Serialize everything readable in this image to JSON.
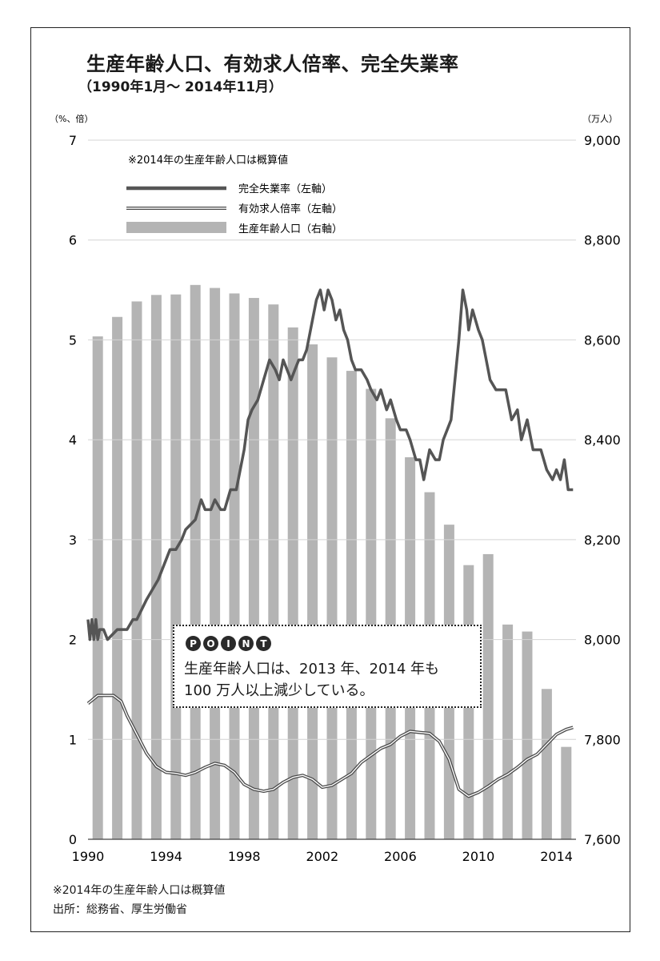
{
  "title": "生産年齢人口、有効求人倍率、完全失業率",
  "subtitle": "（1990年1月～ 2014年11月）",
  "left_axis_unit": "（%、倍）",
  "right_axis_unit": "（万人）",
  "legend": {
    "note": "※2014年の生産年齢人口は概算値",
    "unemployment": "完全失業率（左軸）",
    "job_ratio": "有効求人倍率（左軸）",
    "working_age": "生産年齢人口（右軸）"
  },
  "point": {
    "badge": [
      "P",
      "O",
      "I",
      "N",
      "T"
    ],
    "text": "生産年齢人口は、2013 年、2014 年も\n100 万人以上減少している。"
  },
  "footnote": "※2014年の生産年齢人口は概算値",
  "source": "出所：総務省、厚生労働省",
  "colors": {
    "bars": "#b4b4b4",
    "grid": "#d4d4d4",
    "unemployment": "#555555",
    "job_ratio": "#4a4a4a"
  },
  "chart_data": {
    "type": "bar+line",
    "left_axis": {
      "unit": "（%、倍）",
      "range": [
        0,
        7
      ],
      "ticks": [
        "0",
        "1",
        "2",
        "3",
        "4",
        "5",
        "6",
        "7"
      ]
    },
    "right_axis": {
      "unit": "（万人）",
      "range": [
        7600,
        9000
      ],
      "ticks": [
        "7,600",
        "7,800",
        "8,000",
        "8,200",
        "8,400",
        "8,600",
        "8,800",
        "9,000"
      ]
    },
    "x_axis": {
      "range": [
        1990,
        2015
      ],
      "tick_labels": [
        "1990",
        "1994",
        "1998",
        "2002",
        "2006",
        "2010",
        "2014"
      ]
    },
    "grid": true,
    "legend_position": "top-left",
    "working_age_population": {
      "name": "生産年齢人口（右軸）",
      "years": [
        1990,
        1991,
        1992,
        1993,
        1994,
        1995,
        1996,
        1997,
        1998,
        1999,
        2000,
        2001,
        2002,
        2003,
        2004,
        2005,
        2006,
        2007,
        2008,
        2009,
        2010,
        2011,
        2012,
        2013,
        2014
      ],
      "values": [
        8607,
        8646,
        8677,
        8690,
        8691,
        8710,
        8704,
        8693,
        8684,
        8671,
        8625,
        8591,
        8565,
        8538,
        8502,
        8443,
        8365,
        8295,
        8230,
        8149,
        8171,
        8030,
        8016,
        7901,
        7785
      ]
    },
    "unemployment_rate": {
      "name": "完全失業率（左軸）",
      "x": [
        1990.0,
        1990.1,
        1990.2,
        1990.3,
        1990.4,
        1990.5,
        1990.6,
        1990.8,
        1991.0,
        1991.5,
        1992.0,
        1992.3,
        1992.5,
        1993.0,
        1993.3,
        1993.6,
        1994.0,
        1994.2,
        1994.5,
        1994.8,
        1995.0,
        1995.5,
        1995.8,
        1996.0,
        1996.3,
        1996.5,
        1996.8,
        1997.0,
        1997.3,
        1997.6,
        1998.0,
        1998.2,
        1998.4,
        1998.7,
        1999.0,
        1999.3,
        1999.6,
        1999.8,
        2000.0,
        2000.2,
        2000.4,
        2000.6,
        2000.8,
        2001.0,
        2001.2,
        2001.5,
        2001.7,
        2001.9,
        2002.1,
        2002.3,
        2002.5,
        2002.7,
        2002.9,
        2003.1,
        2003.3,
        2003.5,
        2003.7,
        2004.0,
        2004.3,
        2004.5,
        2004.8,
        2005.0,
        2005.3,
        2005.5,
        2005.8,
        2006.0,
        2006.3,
        2006.5,
        2006.8,
        2007.0,
        2007.2,
        2007.5,
        2007.8,
        2008.0,
        2008.2,
        2008.4,
        2008.6,
        2008.8,
        2009.0,
        2009.2,
        2009.4,
        2009.5,
        2009.7,
        2010.0,
        2010.2,
        2010.4,
        2010.6,
        2010.9,
        2011.1,
        2011.4,
        2011.7,
        2012.0,
        2012.2,
        2012.5,
        2012.8,
        2013.0,
        2013.2,
        2013.5,
        2013.8,
        2014.0,
        2014.2,
        2014.4,
        2014.6,
        2014.85
      ],
      "values": [
        2.2,
        2.0,
        2.2,
        2.0,
        2.2,
        2.0,
        2.1,
        2.1,
        2.0,
        2.1,
        2.1,
        2.2,
        2.2,
        2.4,
        2.5,
        2.6,
        2.8,
        2.9,
        2.9,
        3.0,
        3.1,
        3.2,
        3.4,
        3.3,
        3.3,
        3.4,
        3.3,
        3.3,
        3.5,
        3.5,
        3.9,
        4.2,
        4.3,
        4.4,
        4.6,
        4.8,
        4.7,
        4.6,
        4.8,
        4.7,
        4.6,
        4.7,
        4.8,
        4.8,
        4.9,
        5.2,
        5.4,
        5.5,
        5.3,
        5.5,
        5.4,
        5.2,
        5.3,
        5.1,
        5.0,
        4.8,
        4.7,
        4.7,
        4.6,
        4.5,
        4.4,
        4.5,
        4.3,
        4.4,
        4.2,
        4.1,
        4.1,
        4.0,
        3.8,
        3.8,
        3.6,
        3.9,
        3.8,
        3.8,
        4.0,
        4.1,
        4.2,
        4.6,
        5.0,
        5.5,
        5.3,
        5.1,
        5.3,
        5.1,
        5.0,
        4.8,
        4.6,
        4.5,
        4.5,
        4.5,
        4.2,
        4.3,
        4.0,
        4.2,
        3.9,
        3.9,
        3.9,
        3.7,
        3.6,
        3.7,
        3.6,
        3.8,
        3.5,
        3.5
      ]
    },
    "job_openings_ratio": {
      "name": "有効求人倍率（左軸）",
      "x": [
        1990.0,
        1990.5,
        1991.0,
        1991.3,
        1991.7,
        1992.0,
        1992.5,
        1993.0,
        1993.5,
        1994.0,
        1994.5,
        1995.0,
        1995.5,
        1996.0,
        1996.5,
        1997.0,
        1997.5,
        1998.0,
        1998.5,
        1999.0,
        1999.5,
        2000.0,
        2000.5,
        2001.0,
        2001.5,
        2002.0,
        2002.5,
        2003.0,
        2003.5,
        2004.0,
        2004.5,
        2005.0,
        2005.5,
        2006.0,
        2006.5,
        2007.0,
        2007.5,
        2008.0,
        2008.5,
        2009.0,
        2009.5,
        2010.0,
        2010.5,
        2011.0,
        2011.5,
        2012.0,
        2012.5,
        2013.0,
        2013.5,
        2014.0,
        2014.5,
        2014.85
      ],
      "values": [
        1.36,
        1.44,
        1.44,
        1.44,
        1.38,
        1.24,
        1.05,
        0.86,
        0.73,
        0.67,
        0.66,
        0.64,
        0.67,
        0.72,
        0.76,
        0.74,
        0.67,
        0.55,
        0.5,
        0.48,
        0.5,
        0.57,
        0.62,
        0.64,
        0.6,
        0.52,
        0.54,
        0.6,
        0.66,
        0.77,
        0.84,
        0.91,
        0.95,
        1.03,
        1.08,
        1.07,
        1.06,
        0.98,
        0.8,
        0.5,
        0.43,
        0.47,
        0.53,
        0.6,
        0.65,
        0.72,
        0.8,
        0.85,
        0.95,
        1.05,
        1.1,
        1.12
      ]
    }
  }
}
